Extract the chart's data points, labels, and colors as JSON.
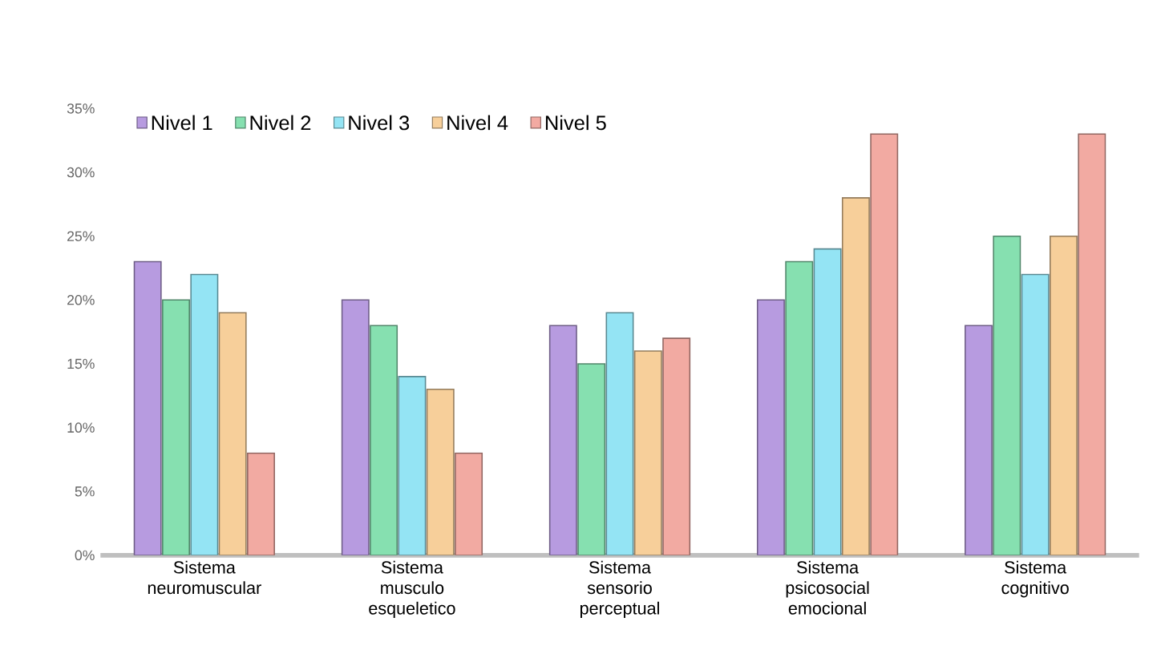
{
  "chart_data": {
    "type": "bar",
    "categories": [
      "Sistema neuromuscular",
      "Sistema musculo esqueletico",
      "Sistema sensorio perceptual",
      "Sistema psicosocial emocional",
      "Sistema cognitivo"
    ],
    "series": [
      {
        "name": "Nivel 1",
        "color": "#b79be0",
        "values": [
          23,
          20,
          18,
          20,
          18
        ]
      },
      {
        "name": "Nivel 2",
        "color": "#86e0b0",
        "values": [
          20,
          18,
          15,
          23,
          25
        ]
      },
      {
        "name": "Nivel 3",
        "color": "#94e4f4",
        "values": [
          22,
          14,
          19,
          24,
          22
        ]
      },
      {
        "name": "Nivel 4",
        "color": "#f7cf9a",
        "values": [
          19,
          13,
          16,
          28,
          25
        ]
      },
      {
        "name": "Nivel 5",
        "color": "#f2aaa2",
        "values": [
          8,
          8,
          17,
          33,
          33
        ]
      }
    ],
    "ylim": [
      0,
      35
    ],
    "yticks": [
      {
        "value": 0,
        "label": "0%"
      },
      {
        "value": 5,
        "label": "5%"
      },
      {
        "value": 10,
        "label": "10%"
      },
      {
        "value": 15,
        "label": "15%"
      },
      {
        "value": 20,
        "label": "20%"
      },
      {
        "value": 25,
        "label": "25%"
      },
      {
        "value": 30,
        "label": "30%"
      },
      {
        "value": 35,
        "label": "35%"
      }
    ],
    "grid": false,
    "legend": "top left"
  }
}
